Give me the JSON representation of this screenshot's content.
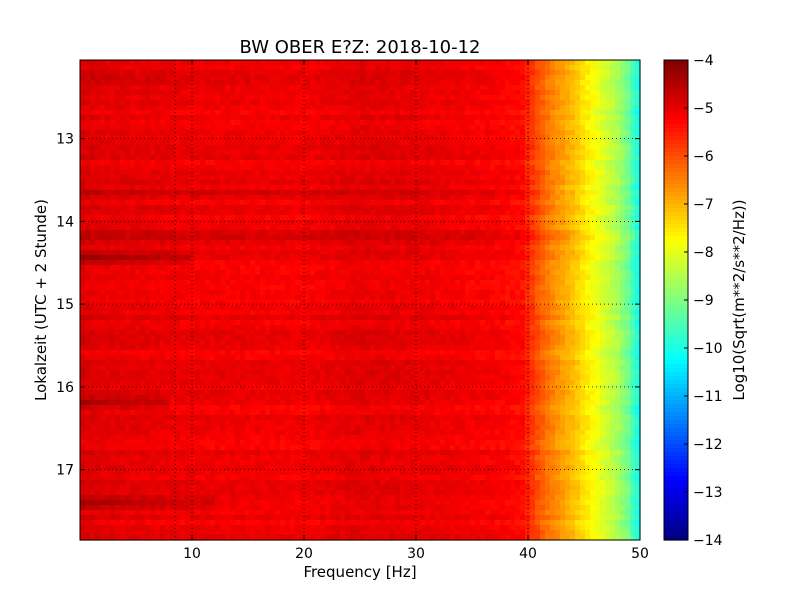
{
  "chart_data": {
    "type": "heatmap",
    "title": "BW OBER E?Z: 2018-10-12",
    "xlabel": "Frequency [Hz]",
    "ylabel": "Lokalzeit (UTC + 2 Stunde)",
    "colorbar_label": "Log10(Sqrt(m**2/s**2/Hz))",
    "xlim": [
      0,
      50
    ],
    "ylim": [
      12.05,
      17.85
    ],
    "y_inverted": true,
    "x_ticks": [
      {
        "value": 10,
        "label": "10"
      },
      {
        "value": 20,
        "label": "20"
      },
      {
        "value": 30,
        "label": "30"
      },
      {
        "value": 40,
        "label": "40"
      },
      {
        "value": 50,
        "label": "50"
      }
    ],
    "y_ticks": [
      {
        "value": 13,
        "label": "13"
      },
      {
        "value": 14,
        "label": "14"
      },
      {
        "value": 15,
        "label": "15"
      },
      {
        "value": 16,
        "label": "16"
      },
      {
        "value": 17,
        "label": "17"
      }
    ],
    "vertical_gridlines": [
      8.5,
      10,
      20,
      30,
      40
    ],
    "horizontal_gridlines": [
      13,
      14,
      15,
      16,
      17
    ],
    "grid": "dotted",
    "colormap": "jet",
    "color_range": [
      -14,
      -4
    ],
    "colorbar_ticks": [
      {
        "value": -4,
        "label": "−4"
      },
      {
        "value": -5,
        "label": "−5"
      },
      {
        "value": -6,
        "label": "−6"
      },
      {
        "value": -7,
        "label": "−7"
      },
      {
        "value": -8,
        "label": "−8"
      },
      {
        "value": -9,
        "label": "−9"
      },
      {
        "value": -10,
        "label": "−10"
      },
      {
        "value": -11,
        "label": "−11"
      },
      {
        "value": -12,
        "label": "−12"
      },
      {
        "value": -13,
        "label": "−13"
      },
      {
        "value": -14,
        "label": "−14"
      }
    ],
    "frequency_profile": [
      {
        "f": 0,
        "v": -4.9
      },
      {
        "f": 2,
        "v": -5.0
      },
      {
        "f": 10,
        "v": -5.1
      },
      {
        "f": 20,
        "v": -5.15
      },
      {
        "f": 25,
        "v": -5.0
      },
      {
        "f": 30,
        "v": -5.05
      },
      {
        "f": 37,
        "v": -5.2
      },
      {
        "f": 39.5,
        "v": -5.35
      },
      {
        "f": 40,
        "v": -5.6
      },
      {
        "f": 41,
        "v": -6.1
      },
      {
        "f": 42,
        "v": -6.5
      },
      {
        "f": 43,
        "v": -6.8
      },
      {
        "f": 44,
        "v": -7.1
      },
      {
        "f": 45,
        "v": -7.5
      },
      {
        "f": 46,
        "v": -7.85
      },
      {
        "f": 47,
        "v": -8.2
      },
      {
        "f": 48,
        "v": -8.6
      },
      {
        "f": 49,
        "v": -9.2
      },
      {
        "f": 50,
        "v": -10.2
      }
    ],
    "strong_bands": [
      {
        "time": 12.3,
        "f_max": 40,
        "delta": 0.35
      },
      {
        "time": 13.65,
        "f_max": 42,
        "delta": 0.3
      },
      {
        "time": 14.15,
        "f_max": 50,
        "delta": 0.35
      },
      {
        "time": 14.45,
        "f_max": 10,
        "delta": 0.7
      },
      {
        "time": 16.2,
        "f_max": 8,
        "delta": 0.6
      },
      {
        "time": 17.4,
        "f_max": 12,
        "delta": 0.6
      }
    ]
  }
}
